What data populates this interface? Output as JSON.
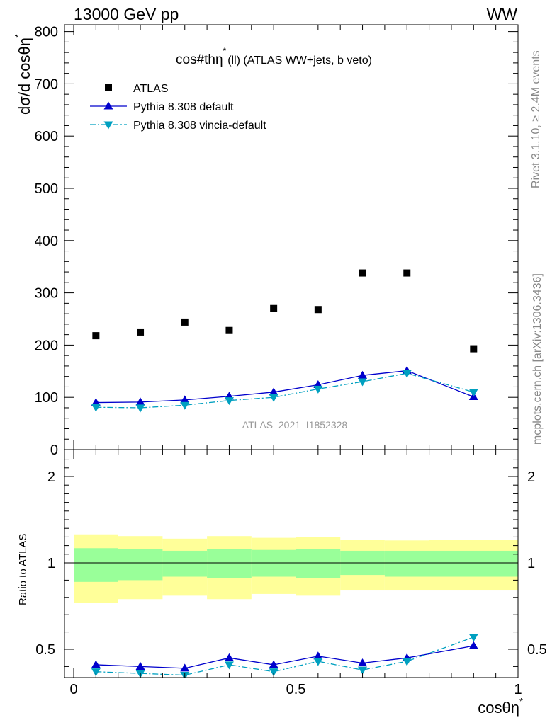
{
  "header": {
    "left": "13000 GeV pp",
    "right": "WW"
  },
  "side_labels": {
    "rivet": "Rivet 3.1.10, ≥ 2.4M events",
    "mcplots": "mcplots.cern.ch [arXiv:1306.3436]"
  },
  "chart_data": [
    {
      "type": "scatter",
      "title": "cos#thη* (ll) (ATLAS WW+jets, b veto)",
      "title_main": "cos#thη",
      "title_sup": "*",
      "title_rest": "(ll) (ATLAS WW+jets, b veto)",
      "ylabel": "dσ/d cosθη*",
      "ylabel_main": "dσ/d cosθη",
      "ylabel_sup": "*",
      "watermark": "ATLAS_2021_I1852328",
      "xlim": [
        0,
        1
      ],
      "ylim": [
        0,
        820
      ],
      "yticks": [
        0,
        100,
        200,
        300,
        400,
        500,
        600,
        700,
        800
      ],
      "ytick_labels": [
        "0",
        "100",
        "200",
        "300",
        "400",
        "500",
        "600",
        "700",
        "800"
      ],
      "legend_position": "top-left",
      "series": [
        {
          "name": "ATLAS",
          "marker": "square",
          "color": "#000000",
          "x": [
            0.05,
            0.15,
            0.25,
            0.35,
            0.45,
            0.55,
            0.65,
            0.75,
            0.9
          ],
          "y": [
            218,
            225,
            244,
            228,
            270,
            268,
            338,
            338,
            193
          ]
        },
        {
          "name": "Pythia 8.308 default",
          "marker": "triangle-up",
          "line": "solid",
          "color": "#0000cc",
          "x": [
            0.05,
            0.15,
            0.25,
            0.35,
            0.45,
            0.55,
            0.65,
            0.75,
            0.9
          ],
          "y": [
            90,
            91,
            95,
            102,
            110,
            124,
            142,
            151,
            101
          ]
        },
        {
          "name": "Pythia 8.308 vincia-default",
          "marker": "triangle-down",
          "line": "dashdot",
          "color": "#00a0c0",
          "x": [
            0.05,
            0.15,
            0.25,
            0.35,
            0.45,
            0.55,
            0.65,
            0.75,
            0.9
          ],
          "y": [
            81,
            80,
            85,
            94,
            100,
            116,
            130,
            146,
            110
          ]
        }
      ]
    },
    {
      "type": "line",
      "ylabel": "Ratio to ATLAS",
      "xlabel": "cosθη*",
      "xlabel_main": "cosθη",
      "xlabel_sup": "*",
      "xlim": [
        0,
        1
      ],
      "ylim": [
        0.35,
        2.3
      ],
      "xticks": [
        0,
        0.5,
        1
      ],
      "xtick_labels": [
        "0",
        "0.5",
        "1"
      ],
      "yticks": [
        0.5,
        1,
        2
      ],
      "ytick_labels": [
        "0.5",
        "1",
        "2"
      ],
      "bands": {
        "bin_edges": [
          0,
          0.1,
          0.2,
          0.3,
          0.4,
          0.5,
          0.6,
          0.7,
          0.8,
          1.0
        ],
        "stat": {
          "color": "#99ff99",
          "lo": [
            0.89,
            0.9,
            0.92,
            0.91,
            0.92,
            0.91,
            0.93,
            0.92,
            0.92
          ],
          "hi": [
            1.17,
            1.16,
            1.14,
            1.16,
            1.15,
            1.16,
            1.14,
            1.14,
            1.14
          ]
        },
        "total": {
          "color": "#ffff99",
          "lo": [
            0.77,
            0.79,
            0.81,
            0.79,
            0.82,
            0.81,
            0.84,
            0.84,
            0.84
          ],
          "hi": [
            1.33,
            1.31,
            1.28,
            1.31,
            1.29,
            1.3,
            1.27,
            1.26,
            1.27
          ]
        }
      },
      "series": [
        {
          "name": "Pythia 8.308 default",
          "marker": "triangle-up",
          "line": "solid",
          "color": "#0000cc",
          "x": [
            0.05,
            0.15,
            0.25,
            0.35,
            0.45,
            0.55,
            0.65,
            0.75,
            0.9
          ],
          "y": [
            0.41,
            0.4,
            0.39,
            0.45,
            0.41,
            0.46,
            0.42,
            0.45,
            0.52
          ]
        },
        {
          "name": "Pythia 8.308 vincia-default",
          "marker": "triangle-down",
          "line": "dashdot",
          "color": "#00a0c0",
          "x": [
            0.05,
            0.15,
            0.25,
            0.35,
            0.45,
            0.55,
            0.65,
            0.75,
            0.9
          ],
          "y": [
            0.37,
            0.36,
            0.35,
            0.41,
            0.37,
            0.43,
            0.38,
            0.43,
            0.57
          ]
        }
      ]
    }
  ]
}
